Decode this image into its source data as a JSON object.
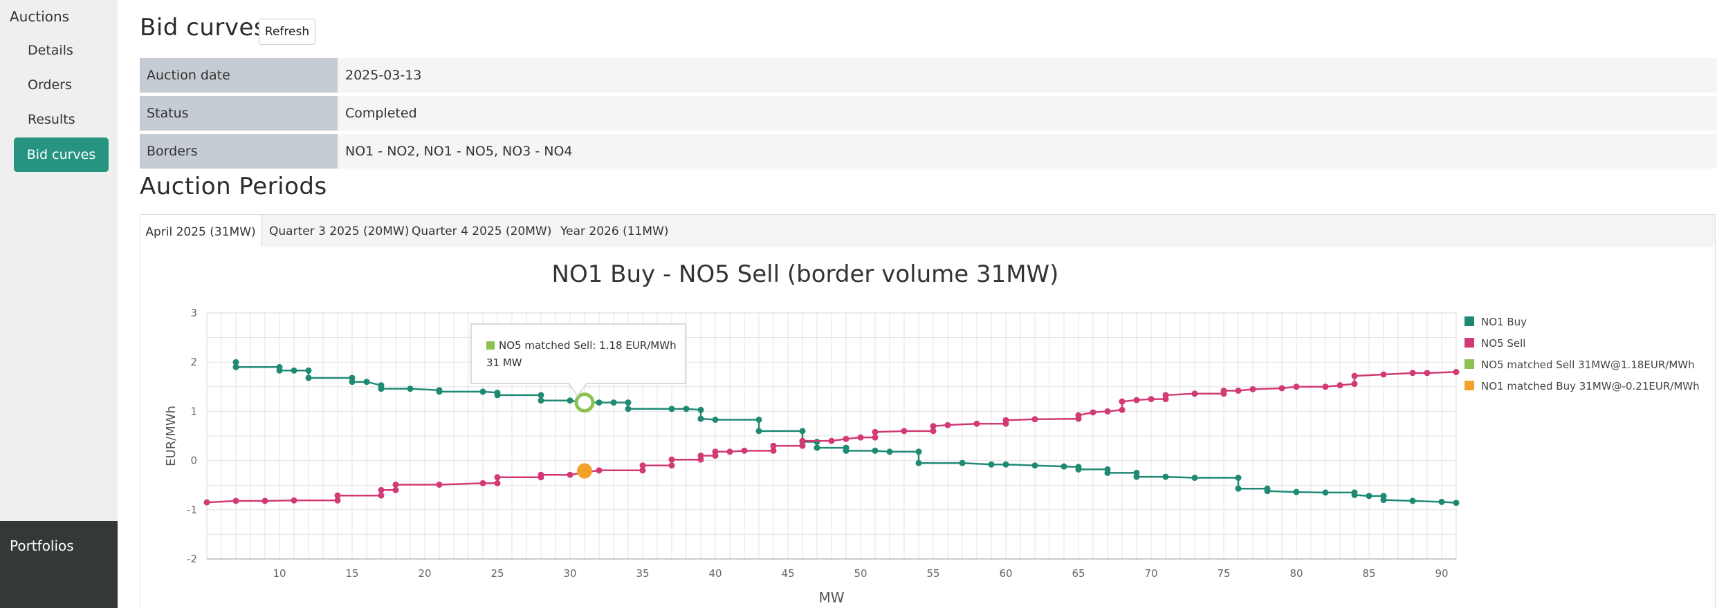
{
  "sidebar": {
    "group_label": "Auctions",
    "items": [
      {
        "label": "Details"
      },
      {
        "label": "Orders"
      },
      {
        "label": "Results"
      },
      {
        "label": "Bid curves",
        "active": true
      }
    ],
    "footer_label": "Portfolios"
  },
  "header": {
    "title": "Bid curves",
    "refresh_label": "Refresh"
  },
  "info": [
    {
      "key": "Auction date",
      "value": "2025-03-13"
    },
    {
      "key": "Status",
      "value": "Completed"
    },
    {
      "key": "Borders",
      "value": "NO1 - NO2, NO1 - NO5, NO3 - NO4"
    }
  ],
  "periods": {
    "title": "Auction Periods",
    "tabs": [
      {
        "label": "April 2025 (31MW)",
        "active": true
      },
      {
        "label": "Quarter 3 2025 (20MW)"
      },
      {
        "label": "Quarter 4 2025 (20MW)"
      },
      {
        "label": "Year 2026 (11MW)"
      }
    ]
  },
  "colors": {
    "accent": "#279481",
    "buy": "#1f8a73",
    "sell": "#d23a75",
    "matched_sell": "#8cc152",
    "matched_buy": "#f3a12b"
  },
  "chart_data": {
    "type": "line",
    "step": true,
    "title": "NO1 Buy - NO5 Sell (border volume 31MW)",
    "xlabel": "MW",
    "ylabel": "EUR/MWh",
    "xlim": [
      5,
      91
    ],
    "ylim": [
      -2,
      3
    ],
    "x_ticks": [
      10,
      15,
      20,
      25,
      30,
      35,
      40,
      45,
      50,
      55,
      60,
      65,
      70,
      75,
      80,
      85,
      90
    ],
    "y_ticks": [
      -2,
      -1,
      0,
      1,
      2,
      3
    ],
    "legend_position": "right",
    "series": [
      {
        "name": "NO1 Buy",
        "color": "#1f8a73",
        "points": [
          [
            7,
            2.0
          ],
          [
            7,
            1.9
          ],
          [
            10,
            1.9
          ],
          [
            10,
            1.83
          ],
          [
            11,
            1.83
          ],
          [
            12,
            1.83
          ],
          [
            12,
            1.68
          ],
          [
            15,
            1.68
          ],
          [
            15,
            1.6
          ],
          [
            16,
            1.6
          ],
          [
            17,
            1.53
          ],
          [
            17,
            1.46
          ],
          [
            19,
            1.46
          ],
          [
            21,
            1.43
          ],
          [
            21,
            1.4
          ],
          [
            24,
            1.4
          ],
          [
            25,
            1.38
          ],
          [
            25,
            1.33
          ],
          [
            28,
            1.33
          ],
          [
            28,
            1.22
          ],
          [
            30,
            1.22
          ],
          [
            31,
            1.18
          ],
          [
            32,
            1.18
          ],
          [
            33,
            1.18
          ],
          [
            34,
            1.18
          ],
          [
            34,
            1.05
          ],
          [
            37,
            1.05
          ],
          [
            38,
            1.05
          ],
          [
            39,
            1.03
          ],
          [
            39,
            0.85
          ],
          [
            40,
            0.83
          ],
          [
            43,
            0.83
          ],
          [
            43,
            0.6
          ],
          [
            46,
            0.6
          ],
          [
            46,
            0.38
          ],
          [
            47,
            0.38
          ],
          [
            47,
            0.26
          ],
          [
            49,
            0.26
          ],
          [
            49,
            0.2
          ],
          [
            51,
            0.2
          ],
          [
            52,
            0.18
          ],
          [
            54,
            0.18
          ],
          [
            54,
            -0.05
          ],
          [
            57,
            -0.05
          ],
          [
            59,
            -0.08
          ],
          [
            60,
            -0.08
          ],
          [
            62,
            -0.1
          ],
          [
            64,
            -0.12
          ],
          [
            65,
            -0.13
          ],
          [
            65,
            -0.18
          ],
          [
            67,
            -0.18
          ],
          [
            67,
            -0.25
          ],
          [
            69,
            -0.25
          ],
          [
            69,
            -0.33
          ],
          [
            71,
            -0.33
          ],
          [
            73,
            -0.35
          ],
          [
            76,
            -0.35
          ],
          [
            76,
            -0.57
          ],
          [
            78,
            -0.57
          ],
          [
            78,
            -0.62
          ],
          [
            80,
            -0.64
          ],
          [
            82,
            -0.65
          ],
          [
            84,
            -0.65
          ],
          [
            84,
            -0.7
          ],
          [
            85,
            -0.72
          ],
          [
            86,
            -0.72
          ],
          [
            86,
            -0.8
          ],
          [
            88,
            -0.82
          ],
          [
            90,
            -0.84
          ],
          [
            91,
            -0.86
          ]
        ]
      },
      {
        "name": "NO5 Sell",
        "color": "#d23a75",
        "points": [
          [
            5,
            -0.85
          ],
          [
            7,
            -0.82
          ],
          [
            9,
            -0.82
          ],
          [
            11,
            -0.81
          ],
          [
            14,
            -0.81
          ],
          [
            14,
            -0.71
          ],
          [
            17,
            -0.71
          ],
          [
            17,
            -0.6
          ],
          [
            18,
            -0.6
          ],
          [
            18,
            -0.49
          ],
          [
            21,
            -0.49
          ],
          [
            24,
            -0.46
          ],
          [
            25,
            -0.46
          ],
          [
            25,
            -0.34
          ],
          [
            28,
            -0.34
          ],
          [
            28,
            -0.29
          ],
          [
            30,
            -0.29
          ],
          [
            31,
            -0.24
          ],
          [
            32,
            -0.2
          ],
          [
            35,
            -0.2
          ],
          [
            35,
            -0.1
          ],
          [
            37,
            -0.1
          ],
          [
            37,
            0.02
          ],
          [
            39,
            0.02
          ],
          [
            39,
            0.1
          ],
          [
            40,
            0.1
          ],
          [
            40,
            0.18
          ],
          [
            41,
            0.18
          ],
          [
            42,
            0.2
          ],
          [
            44,
            0.2
          ],
          [
            44,
            0.3
          ],
          [
            46,
            0.3
          ],
          [
            46,
            0.4
          ],
          [
            48,
            0.4
          ],
          [
            49,
            0.44
          ],
          [
            50,
            0.47
          ],
          [
            51,
            0.47
          ],
          [
            51,
            0.58
          ],
          [
            53,
            0.6
          ],
          [
            55,
            0.6
          ],
          [
            55,
            0.7
          ],
          [
            56,
            0.72
          ],
          [
            58,
            0.75
          ],
          [
            60,
            0.75
          ],
          [
            60,
            0.82
          ],
          [
            62,
            0.84
          ],
          [
            65,
            0.85
          ],
          [
            65,
            0.92
          ],
          [
            66,
            0.98
          ],
          [
            67,
            1.0
          ],
          [
            68,
            1.03
          ],
          [
            68,
            1.2
          ],
          [
            69,
            1.23
          ],
          [
            70,
            1.25
          ],
          [
            71,
            1.25
          ],
          [
            71,
            1.33
          ],
          [
            73,
            1.36
          ],
          [
            75,
            1.36
          ],
          [
            75,
            1.42
          ],
          [
            76,
            1.42
          ],
          [
            77,
            1.45
          ],
          [
            79,
            1.47
          ],
          [
            80,
            1.5
          ],
          [
            82,
            1.5
          ],
          [
            83,
            1.53
          ],
          [
            84,
            1.56
          ],
          [
            84,
            1.72
          ],
          [
            86,
            1.75
          ],
          [
            88,
            1.78
          ],
          [
            89,
            1.78
          ],
          [
            91,
            1.8
          ]
        ]
      },
      {
        "name": "NO5 matched Sell 31MW@1.18EUR/MWh",
        "color": "#8cc152",
        "marker": "hollow-circle",
        "points": [
          [
            31,
            1.18
          ]
        ]
      },
      {
        "name": "NO1 matched Buy 31MW@-0.21EUR/MWh",
        "color": "#f3a12b",
        "marker": "filled-circle",
        "points": [
          [
            31,
            -0.21
          ]
        ]
      }
    ],
    "tooltip": {
      "series": "NO5 matched Sell",
      "text": "NO5 matched Sell: 1.18 EUR/MWh",
      "volume": "31 MW"
    }
  }
}
